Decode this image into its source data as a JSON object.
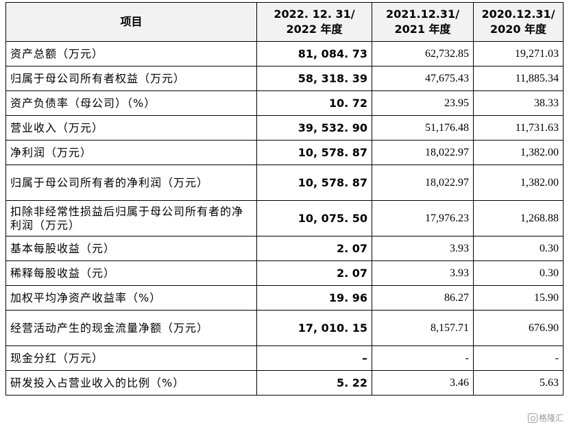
{
  "header": {
    "item": "项目",
    "col1": [
      "2022. 12. 31/",
      "2022 年度"
    ],
    "col2": [
      "2021.12.31/",
      "2021 年度"
    ],
    "col3": [
      "2020.12.31/",
      "2020 年度"
    ]
  },
  "rows": [
    {
      "label": "资产总额（万元）",
      "v2022": "81, 084. 73",
      "v2021": "62,732.85",
      "v2020": "19,271.03"
    },
    {
      "label": "归属于母公司所有者权益（万元）",
      "v2022": "58, 318. 39",
      "v2021": "47,675.43",
      "v2020": "11,885.34"
    },
    {
      "label": "资产负债率（母公司）（%）",
      "v2022": "10. 72",
      "v2021": "23.95",
      "v2020": "38.33"
    },
    {
      "label": "营业收入（万元）",
      "v2022": "39, 532. 90",
      "v2021": "51,176.48",
      "v2020": "11,731.63"
    },
    {
      "label": "净利润（万元）",
      "v2022": "10, 578. 87",
      "v2021": "18,022.97",
      "v2020": "1,382.00"
    },
    {
      "label": "归属于母公司所有者的净利润（万元）",
      "v2022": "10, 578. 87",
      "v2021": "18,022.97",
      "v2020": "1,382.00"
    },
    {
      "label": "扣除非经常性损益后归属于母公司所有者的净利润（万元）",
      "v2022": "10, 075. 50",
      "v2021": "17,976.23",
      "v2020": "1,268.88"
    },
    {
      "label": "基本每股收益（元）",
      "v2022": "2. 07",
      "v2021": "3.93",
      "v2020": "0.30"
    },
    {
      "label": "稀释每股收益（元）",
      "v2022": "2. 07",
      "v2021": "3.93",
      "v2020": "0.30"
    },
    {
      "label": "加权平均净资产收益率（%）",
      "v2022": "19. 96",
      "v2021": "86.27",
      "v2020": "15.90"
    },
    {
      "label": "经营活动产生的现金流量净额（万元）",
      "v2022": "17, 010. 15",
      "v2021": "8,157.71",
      "v2020": "676.90"
    },
    {
      "label": "现金分红（万元）",
      "v2022": "–",
      "v2021": "-",
      "v2020": "-"
    },
    {
      "label": "研发投入占营业收入的比例（%）",
      "v2022": "5. 22",
      "v2021": "3.46",
      "v2020": "5.63"
    }
  ],
  "watermark": "格隆汇"
}
